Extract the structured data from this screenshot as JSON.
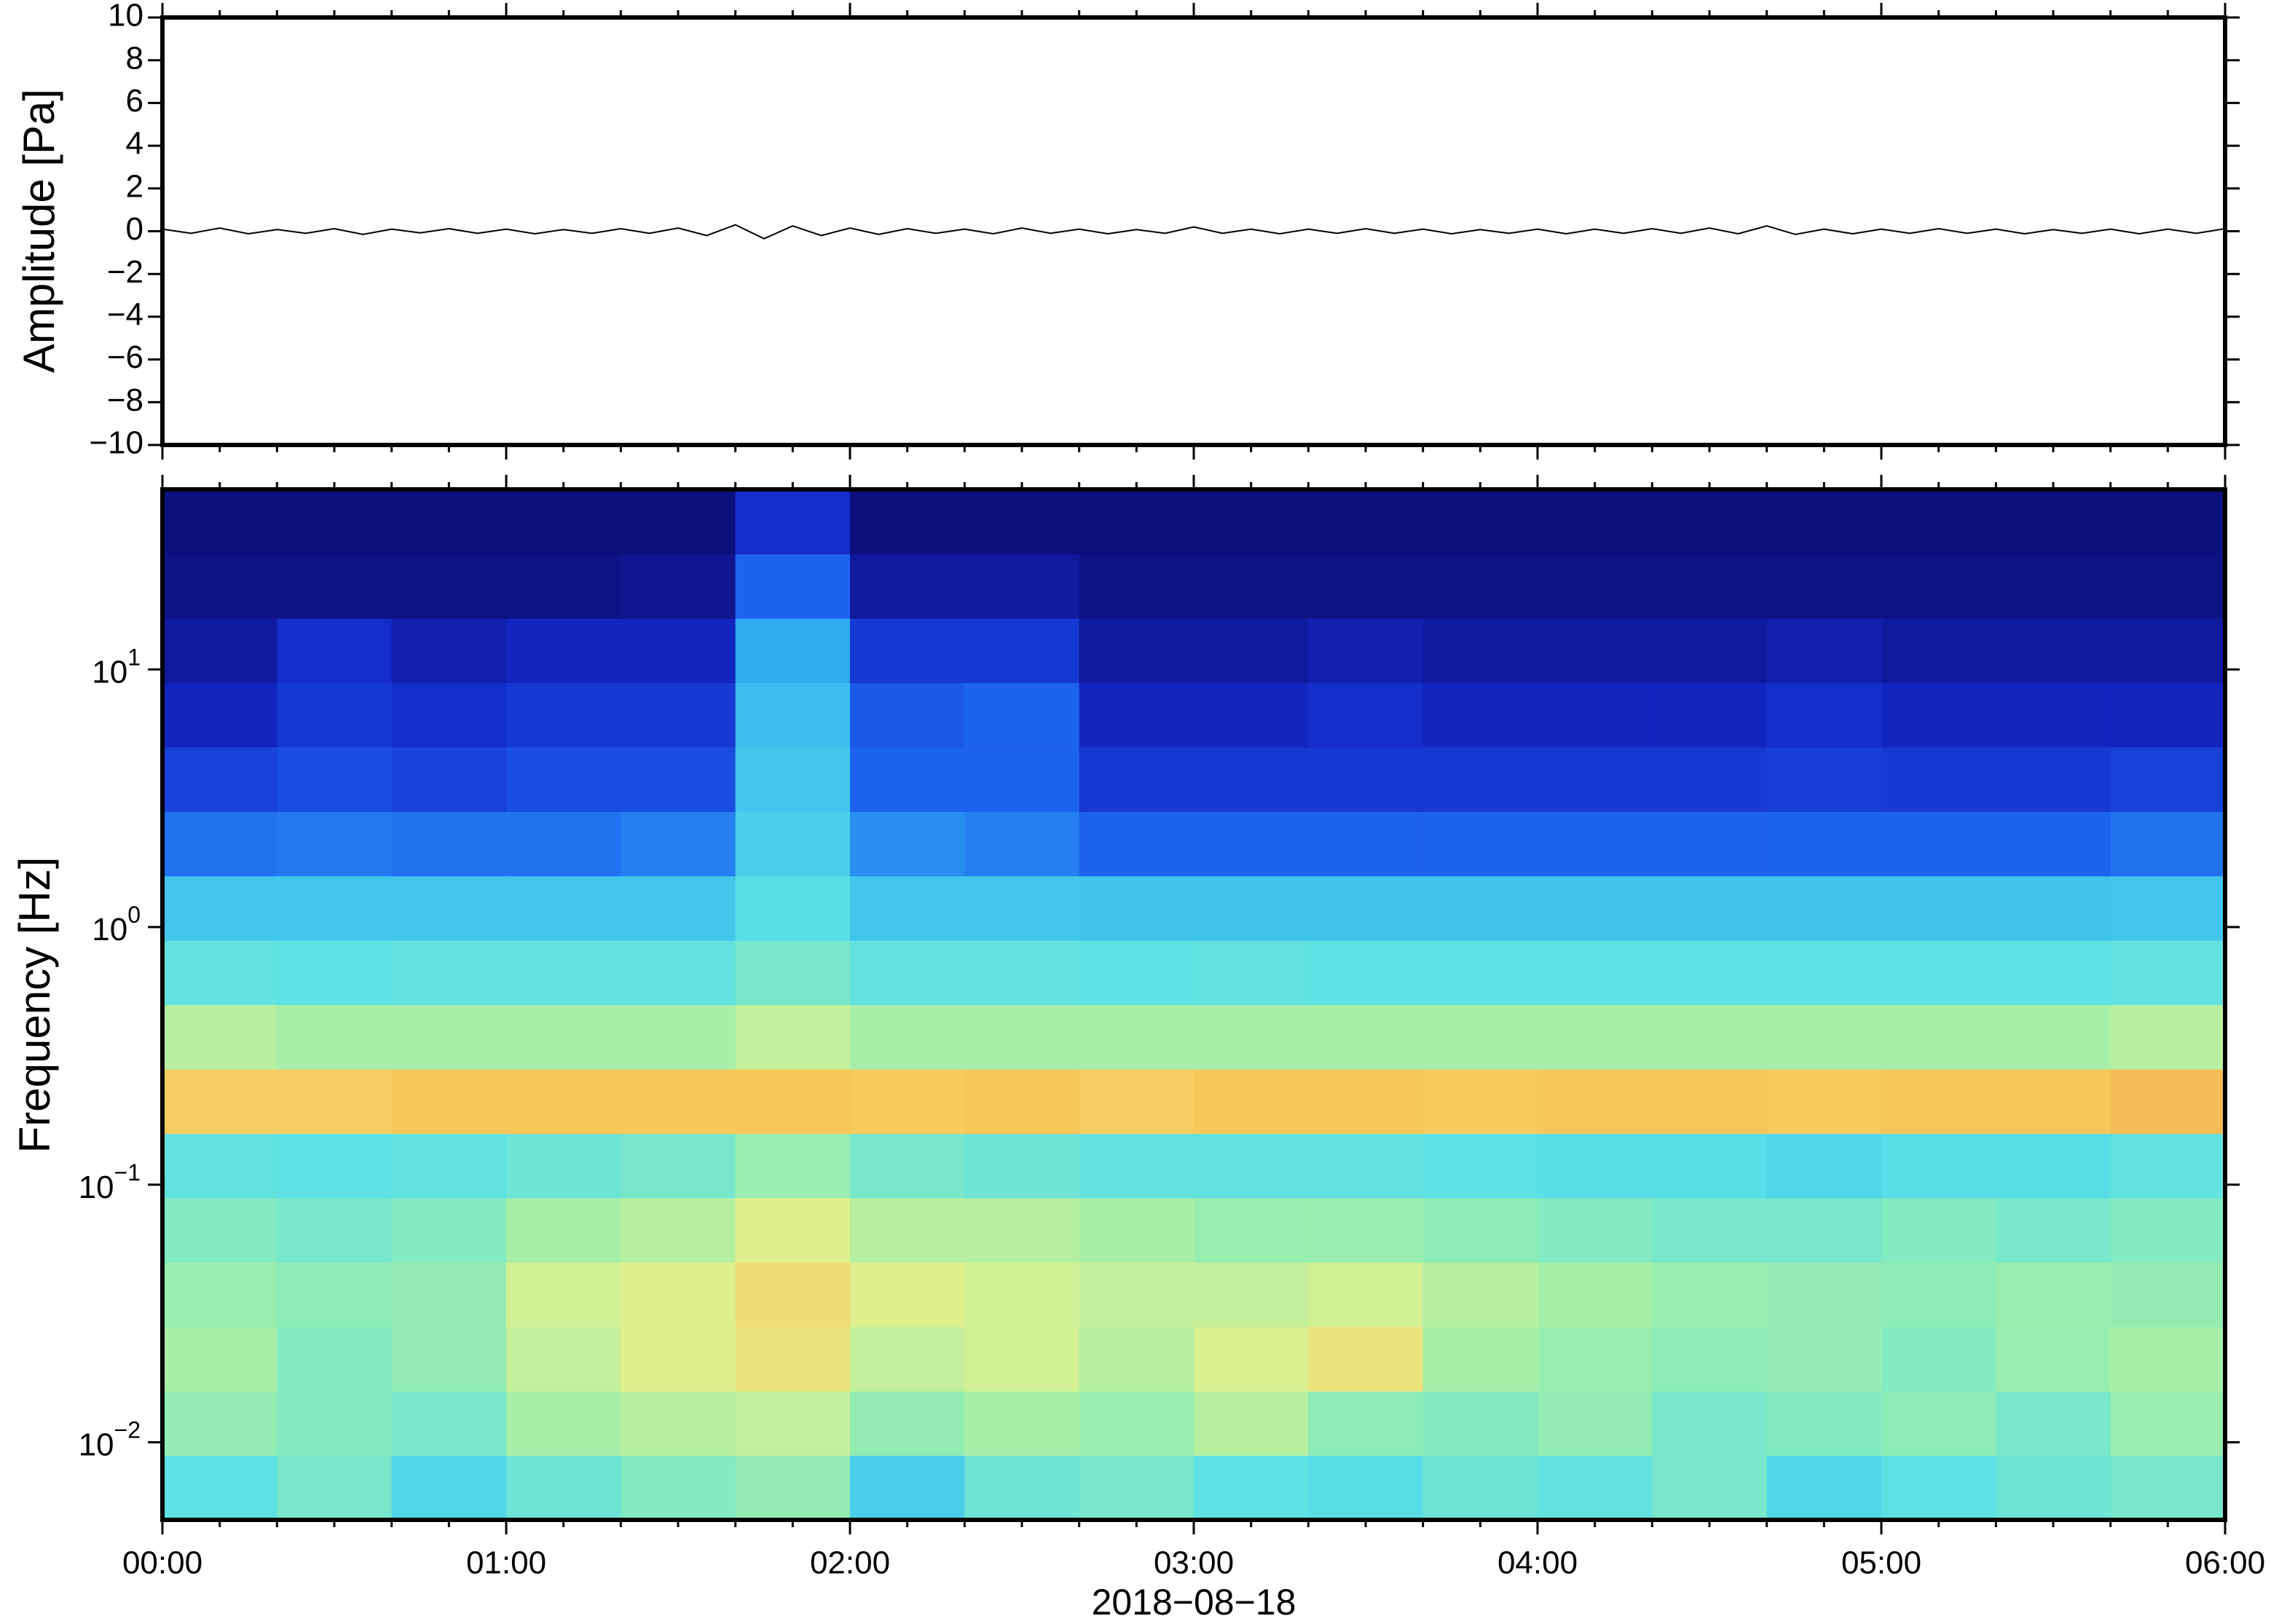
{
  "chart_data": [
    {
      "type": "line",
      "ylabel": "Amplitude [Pa]",
      "color": "#000000",
      "xlim": [
        0,
        360
      ],
      "xticks": [
        0,
        60,
        120,
        180,
        240,
        300,
        360
      ],
      "xminorticks": [
        0,
        10,
        20,
        30,
        40,
        50,
        60,
        70,
        80,
        90,
        100,
        110,
        120,
        130,
        140,
        150,
        160,
        170,
        180,
        190,
        200,
        210,
        220,
        230,
        240,
        250,
        260,
        270,
        280,
        290,
        300,
        310,
        320,
        330,
        340,
        350,
        360
      ],
      "ylim": [
        -10,
        10
      ],
      "yticks": [
        {
          "value": -10,
          "label": "−10"
        },
        {
          "value": -8,
          "label": "−8"
        },
        {
          "value": -6,
          "label": "−6"
        },
        {
          "value": -4,
          "label": "−4"
        },
        {
          "value": -2,
          "label": "−2"
        },
        0,
        2,
        4,
        6,
        8,
        10
      ],
      "x": [
        0,
        5,
        10,
        15,
        20,
        25,
        30,
        35,
        40,
        45,
        50,
        55,
        60,
        65,
        70,
        75,
        80,
        85,
        90,
        95,
        100,
        105,
        110,
        115,
        120,
        125,
        130,
        135,
        140,
        145,
        150,
        155,
        160,
        165,
        170,
        175,
        180,
        185,
        190,
        195,
        200,
        205,
        210,
        215,
        220,
        225,
        230,
        235,
        240,
        245,
        250,
        255,
        260,
        265,
        270,
        275,
        280,
        285,
        290,
        295,
        300,
        305,
        310,
        315,
        320,
        325,
        330,
        335,
        340,
        345,
        350,
        355,
        360
      ],
      "values": [
        0.1,
        -0.1,
        0.15,
        -0.12,
        0.08,
        -0.1,
        0.12,
        -0.15,
        0.1,
        -0.08,
        0.12,
        -0.1,
        0.1,
        -0.12,
        0.08,
        -0.1,
        0.12,
        -0.1,
        0.15,
        -0.2,
        0.3,
        -0.35,
        0.25,
        -0.2,
        0.15,
        -0.15,
        0.12,
        -0.1,
        0.1,
        -0.12,
        0.15,
        -0.1,
        0.1,
        -0.12,
        0.08,
        -0.1,
        0.2,
        -0.1,
        0.1,
        -0.12,
        0.1,
        -0.1,
        0.12,
        -0.1,
        0.1,
        -0.12,
        0.08,
        -0.1,
        0.1,
        -0.12,
        0.1,
        -0.1,
        0.12,
        -0.1,
        0.15,
        -0.12,
        0.25,
        -0.15,
        0.1,
        -0.12,
        0.1,
        -0.1,
        0.12,
        -0.1,
        0.1,
        -0.12,
        0.08,
        -0.1,
        0.1,
        -0.12,
        0.1,
        -0.1,
        0.12
      ]
    },
    {
      "type": "heatmap",
      "ylabel": "Frequency [Hz]",
      "xlabel": "2018−08−18",
      "log_y": true,
      "xlim": [
        0,
        360
      ],
      "xticks": [
        {
          "value": 0,
          "label": "00:00"
        },
        {
          "value": 60,
          "label": "01:00"
        },
        {
          "value": 120,
          "label": "02:00"
        },
        {
          "value": 180,
          "label": "03:00"
        },
        {
          "value": 240,
          "label": "04:00"
        },
        {
          "value": 300,
          "label": "05:00"
        },
        {
          "value": 360,
          "label": "06:00"
        }
      ],
      "xminorticks": [
        0,
        10,
        20,
        30,
        40,
        50,
        60,
        70,
        80,
        90,
        100,
        110,
        120,
        130,
        140,
        150,
        160,
        170,
        180,
        190,
        200,
        210,
        220,
        230,
        240,
        250,
        260,
        270,
        280,
        290,
        300,
        310,
        320,
        330,
        340,
        350,
        360
      ],
      "ylim": [
        0.005,
        50
      ],
      "yticks": [
        {
          "value": 0.01,
          "label": "10",
          "exponent": "−2"
        },
        {
          "value": 0.1,
          "label": "10",
          "exponent": "−1"
        },
        {
          "value": 1,
          "label": "10",
          "exponent": "0"
        },
        {
          "value": 10,
          "label": "10",
          "exponent": "1"
        }
      ],
      "zlim": [
        0,
        100
      ],
      "colormap": [
        "#0a0a6e",
        "#1428c8",
        "#1e64f0",
        "#32b4f0",
        "#5ae0e6",
        "#96eeb0",
        "#e6f08c",
        "#f8c85a",
        "#f08c46",
        "#e63c28"
      ],
      "x_edges": [
        0,
        20,
        40,
        60,
        80,
        100,
        120,
        140,
        160,
        180,
        200,
        220,
        240,
        260,
        280,
        300,
        320,
        340,
        360
      ],
      "y_edges": [
        0.005,
        0.0089,
        0.0158,
        0.0281,
        0.05,
        0.0889,
        0.158,
        0.281,
        0.5,
        0.889,
        1.58,
        2.81,
        5,
        8.89,
        15.8,
        28.1,
        50
      ],
      "values": [
        [
          45,
          50,
          42,
          48,
          52,
          55,
          40,
          48,
          50,
          45,
          44,
          48,
          46,
          50,
          42,
          45,
          48,
          50
        ],
        [
          55,
          52,
          50,
          58,
          60,
          62,
          55,
          58,
          56,
          60,
          54,
          52,
          55,
          50,
          52,
          54,
          50,
          56
        ],
        [
          58,
          52,
          55,
          62,
          66,
          70,
          62,
          64,
          60,
          65,
          70,
          58,
          56,
          54,
          55,
          52,
          56,
          58
        ],
        [
          56,
          54,
          55,
          64,
          66,
          72,
          66,
          64,
          62,
          62,
          64,
          60,
          58,
          56,
          55,
          54,
          56,
          55
        ],
        [
          52,
          50,
          52,
          58,
          60,
          66,
          60,
          60,
          58,
          56,
          56,
          54,
          52,
          50,
          50,
          52,
          50,
          52
        ],
        [
          46,
          45,
          46,
          48,
          50,
          56,
          50,
          48,
          46,
          46,
          46,
          45,
          44,
          44,
          42,
          44,
          44,
          46
        ],
        [
          76,
          76,
          78,
          78,
          78,
          78,
          77,
          78,
          76,
          78,
          78,
          77,
          78,
          78,
          77,
          78,
          78,
          80
        ],
        [
          60,
          58,
          58,
          58,
          58,
          62,
          58,
          58,
          58,
          58,
          58,
          58,
          58,
          58,
          58,
          58,
          58,
          60
        ],
        [
          46,
          45,
          46,
          46,
          46,
          50,
          46,
          46,
          45,
          46,
          45,
          45,
          45,
          45,
          45,
          45,
          45,
          46
        ],
        [
          38,
          38,
          38,
          38,
          38,
          44,
          38,
          38,
          37,
          37,
          37,
          37,
          37,
          37,
          37,
          37,
          37,
          38
        ],
        [
          24,
          25,
          24,
          24,
          26,
          40,
          28,
          26,
          22,
          22,
          22,
          22,
          22,
          22,
          22,
          22,
          22,
          24
        ],
        [
          16,
          18,
          16,
          18,
          18,
          38,
          22,
          22,
          14,
          14,
          14,
          14,
          14,
          14,
          15,
          14,
          14,
          16
        ],
        [
          10,
          14,
          12,
          14,
          14,
          36,
          20,
          22,
          10,
          10,
          12,
          10,
          10,
          10,
          12,
          10,
          10,
          10
        ],
        [
          6,
          12,
          8,
          10,
          10,
          32,
          14,
          14,
          6,
          6,
          8,
          6,
          6,
          6,
          8,
          6,
          6,
          6
        ],
        [
          3,
          3,
          3,
          3,
          4,
          22,
          6,
          6,
          3,
          3,
          3,
          3,
          3,
          3,
          3,
          3,
          3,
          3
        ],
        [
          2,
          2,
          2,
          2,
          2,
          12,
          2,
          2,
          2,
          2,
          2,
          2,
          2,
          2,
          2,
          2,
          2,
          2
        ]
      ]
    }
  ]
}
